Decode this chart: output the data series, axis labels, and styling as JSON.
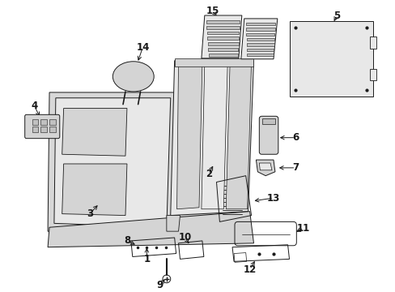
{
  "background_color": "#ffffff",
  "line_color": "#1a1a1a",
  "fill_light": "#e8e8e8",
  "fill_mid": "#d4d4d4",
  "fill_dark": "#c0c0c0",
  "fig_width": 4.89,
  "fig_height": 3.6,
  "dpi": 100
}
